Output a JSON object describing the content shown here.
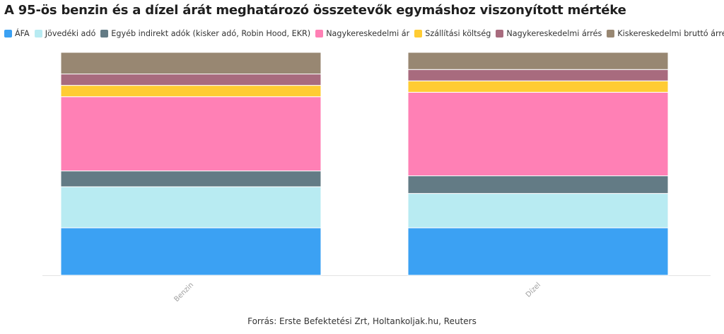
{
  "title": "A 95-ös benzin és a dízel árát meghatározó összetevők egymáshoz viszonyított mértéke",
  "source": "Forrás: Erste Befektetési Zrt, Holtankoljak.hu, Reuters",
  "chart_data": {
    "type": "bar",
    "stacked": true,
    "normalized": true,
    "categories": [
      "Benzin",
      "Dízel"
    ],
    "ylim": [
      0,
      100
    ],
    "grid": false,
    "legend_position": "top",
    "series": [
      {
        "name": "ÁFA",
        "color": "#3ba1f3",
        "values": [
          21.3,
          21.3
        ]
      },
      {
        "name": "Jövedéki adó",
        "color": "#b8ebf2",
        "values": [
          18.4,
          15.4
        ]
      },
      {
        "name": "Egyéb indirekt adók (kisker adó, Robin Hood, EKR)",
        "color": "#637b85",
        "values": [
          7.1,
          7.9
        ]
      },
      {
        "name": "Nagykereskedelmi ár",
        "color": "#ff80b5",
        "values": [
          33.3,
          37.5
        ]
      },
      {
        "name": "Szállítási költség",
        "color": "#ffcc33",
        "values": [
          5.1,
          5.1
        ]
      },
      {
        "name": "Nagykereskedelmi árrés",
        "color": "#a86b7e",
        "values": [
          5.1,
          5.1
        ]
      },
      {
        "name": "Kiskereskedelmi bruttó árrés",
        "color": "#988772",
        "values": [
          9.7,
          7.7
        ]
      }
    ]
  }
}
